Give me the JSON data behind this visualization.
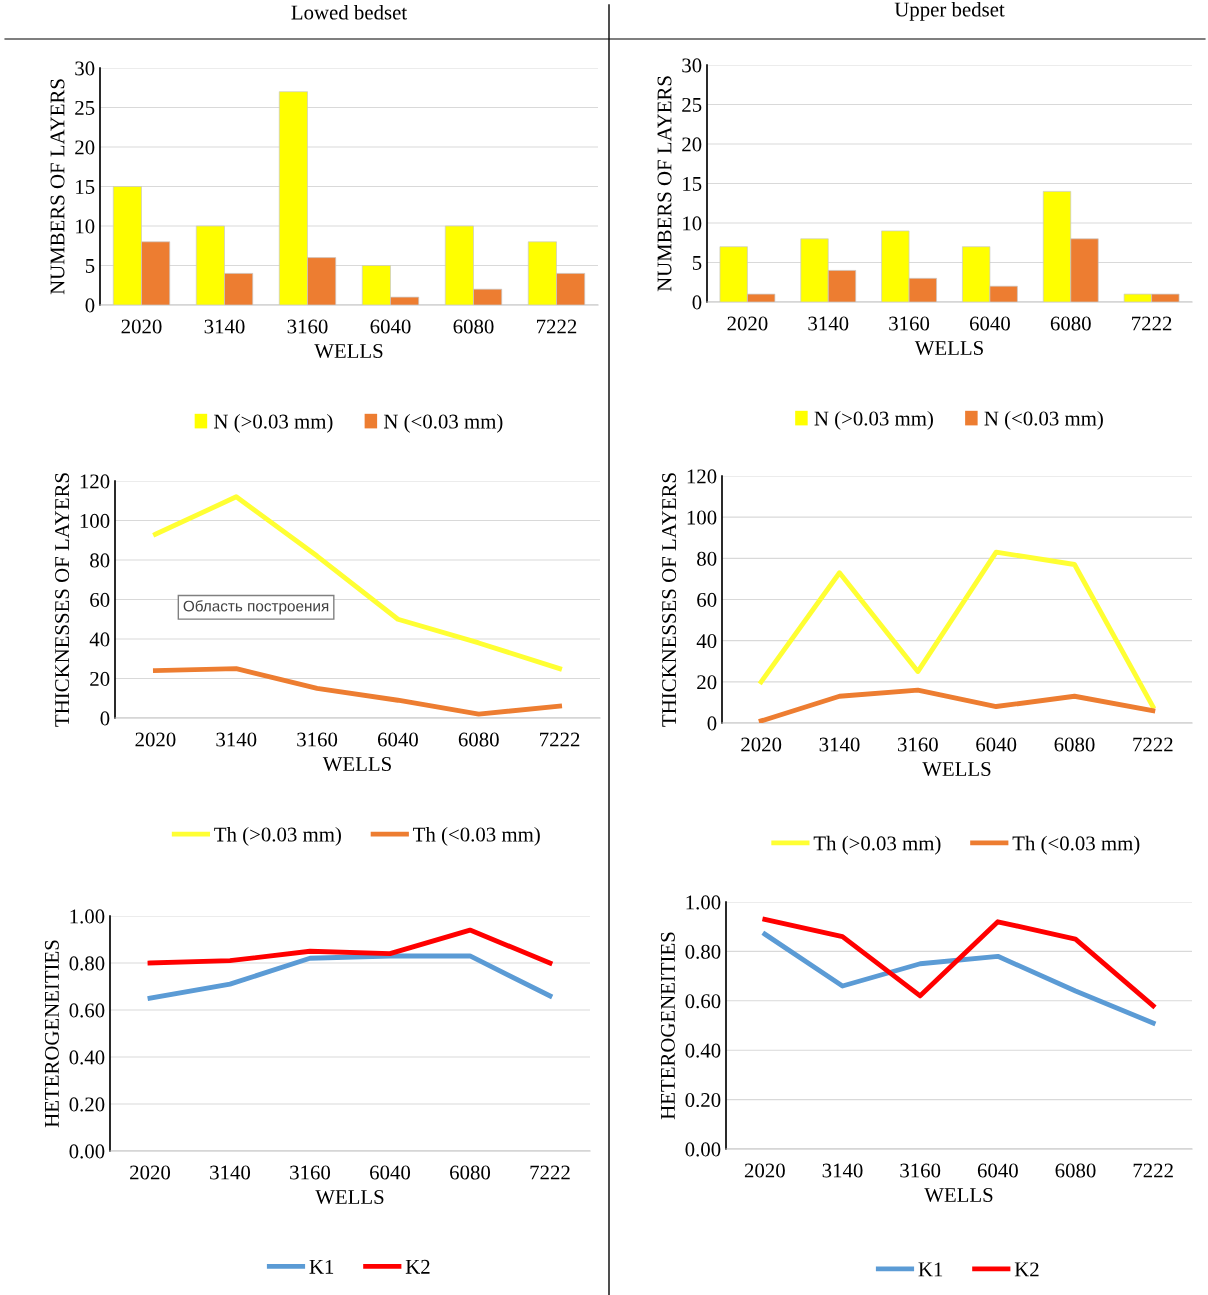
{
  "chart_data": [
    {
      "type": "bar",
      "title": "Lowed bedset",
      "xlabel": "WELLS",
      "ylabel": "NUMBERS OF LAYERS",
      "categories": [
        "2020",
        "3140",
        "3160",
        "6040",
        "6080",
        "7222"
      ],
      "series": [
        {
          "name": "N (>0.03 mm)",
          "color": "#ffff00",
          "values": [
            15,
            10,
            27,
            5,
            10,
            8
          ]
        },
        {
          "name": "N (<0.03 mm)",
          "color": "#ed7d31",
          "values": [
            8,
            4,
            6,
            1,
            2,
            4
          ]
        }
      ],
      "ylim": [
        0,
        30
      ],
      "yticks": [
        0,
        5,
        10,
        15,
        20,
        25,
        30
      ],
      "grid": "y",
      "legend": "bottom"
    },
    {
      "type": "bar",
      "title": "Upper bedset",
      "xlabel": "WELLS",
      "ylabel": "NUMBERS OF LAYERS",
      "categories": [
        "2020",
        "3140",
        "3160",
        "6040",
        "6080",
        "7222"
      ],
      "series": [
        {
          "name": "N (>0.03 mm)",
          "color": "#ffff00",
          "values": [
            7,
            8,
            9,
            7,
            14,
            1
          ]
        },
        {
          "name": "N (<0.03 mm)",
          "color": "#ed7d31",
          "values": [
            1,
            4,
            3,
            2,
            8,
            1
          ]
        }
      ],
      "ylim": [
        0,
        30
      ],
      "yticks": [
        0,
        5,
        10,
        15,
        20,
        25,
        30
      ],
      "grid": "y",
      "legend": "bottom"
    },
    {
      "type": "line",
      "xlabel": "WELLS",
      "ylabel": "THICKNESSES OF LAYERS",
      "categories": [
        "2020",
        "3140",
        "3160",
        "6040",
        "6080",
        "7222"
      ],
      "series": [
        {
          "name": "Th (>0.03 mm)",
          "color": "#ffff33",
          "values": [
            93,
            112,
            82,
            50,
            38,
            25
          ]
        },
        {
          "name": "Th (<0.03 mm)",
          "color": "#ed7d31",
          "values": [
            24,
            25,
            15,
            9,
            2,
            6
          ]
        }
      ],
      "ylim": [
        0,
        120
      ],
      "yticks": [
        0,
        20,
        40,
        60,
        80,
        100,
        120
      ],
      "grid": "y",
      "legend": "bottom",
      "annotations": [
        "Область построения"
      ]
    },
    {
      "type": "line",
      "xlabel": "WELLS",
      "ylabel": "THICKNESSES OF LAYERS",
      "categories": [
        "2020",
        "3140",
        "3160",
        "6040",
        "6080",
        "7222"
      ],
      "series": [
        {
          "name": "Th (>0.03 mm)",
          "color": "#ffff33",
          "values": [
            20,
            73,
            25,
            83,
            77,
            8
          ]
        },
        {
          "name": "Th (<0.03 mm)",
          "color": "#ed7d31",
          "values": [
            1,
            13,
            16,
            8,
            13,
            6
          ]
        }
      ],
      "ylim": [
        0,
        120
      ],
      "yticks": [
        0,
        20,
        40,
        60,
        80,
        100,
        120
      ],
      "grid": "y",
      "legend": "bottom"
    },
    {
      "type": "line",
      "xlabel": "WELLS",
      "ylabel": "HETEROGENEITIES",
      "categories": [
        "2020",
        "3140",
        "3160",
        "6040",
        "6080",
        "7222"
      ],
      "series": [
        {
          "name": "K1",
          "color": "#5b9bd5",
          "values": [
            0.65,
            0.71,
            0.82,
            0.83,
            0.83,
            0.66
          ]
        },
        {
          "name": "K2",
          "color": "#ff0000",
          "values": [
            0.8,
            0.81,
            0.85,
            0.84,
            0.94,
            0.8
          ]
        }
      ],
      "ylim": [
        0,
        1
      ],
      "yticks": [
        {
          "value": 0,
          "label": "0.00"
        },
        {
          "value": 0.2,
          "label": "0.20"
        },
        {
          "value": 0.4,
          "label": "0.40"
        },
        {
          "value": 0.6,
          "label": "0.60"
        },
        {
          "value": 0.8,
          "label": "0.80"
        },
        {
          "value": 1,
          "label": "1.00"
        }
      ],
      "grid": "y",
      "legend": "bottom"
    },
    {
      "type": "line",
      "xlabel": "WELLS",
      "ylabel": "HETEROGENEITIES",
      "categories": [
        "2020",
        "3140",
        "3160",
        "6040",
        "6080",
        "7222"
      ],
      "series": [
        {
          "name": "K1",
          "color": "#5b9bd5",
          "values": [
            0.87,
            0.66,
            0.75,
            0.78,
            0.64,
            0.51
          ]
        },
        {
          "name": "K2",
          "color": "#ff0000",
          "values": [
            0.93,
            0.86,
            0.62,
            0.92,
            0.85,
            0.58
          ]
        }
      ],
      "ylim": [
        0,
        1
      ],
      "yticks": [
        {
          "value": 0,
          "label": "0.00"
        },
        {
          "value": 0.2,
          "label": "0.20"
        },
        {
          "value": 0.4,
          "label": "0.40"
        },
        {
          "value": 0.6,
          "label": "0.60"
        },
        {
          "value": 0.8,
          "label": "0.80"
        },
        {
          "value": 1,
          "label": "1.00"
        }
      ],
      "grid": "y",
      "legend": "bottom"
    }
  ]
}
